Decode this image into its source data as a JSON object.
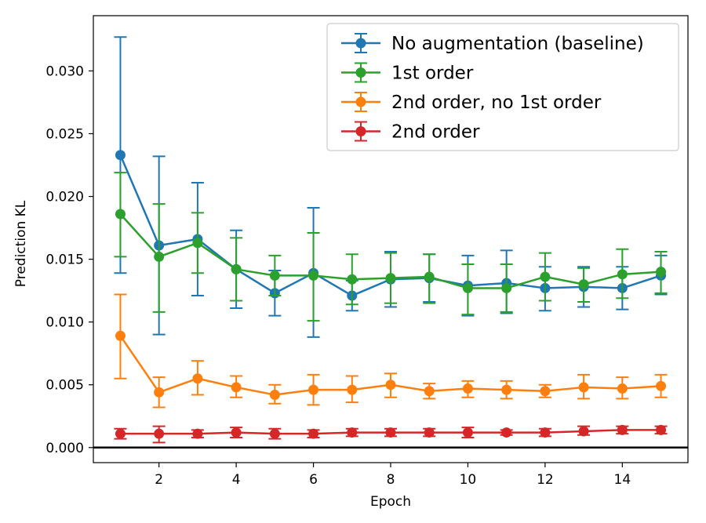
{
  "chart_data": {
    "type": "line",
    "xlabel": "Epoch",
    "ylabel": "Prediction KL",
    "xlim": [
      0.3,
      15.7
    ],
    "ylim": [
      -0.0012,
      0.0344
    ],
    "x_ticks": [
      2,
      4,
      6,
      8,
      10,
      12,
      14
    ],
    "x_tick_labels": [
      "2",
      "4",
      "6",
      "8",
      "10",
      "12",
      "14"
    ],
    "y_ticks": [
      0,
      0.005,
      0.01,
      0.015,
      0.02,
      0.025,
      0.03
    ],
    "y_tick_labels": [
      "0.000",
      "0.005",
      "0.010",
      "0.015",
      "0.020",
      "0.025",
      "0.030"
    ],
    "hline": 0,
    "grid": false,
    "legend_position": "top-right",
    "x": [
      1,
      2,
      3,
      4,
      5,
      6,
      7,
      8,
      9,
      10,
      11,
      12,
      13,
      14,
      15
    ],
    "series": [
      {
        "name": "No augmentation (baseline)",
        "color": "#1f77b4",
        "values": [
          0.0233,
          0.0161,
          0.0166,
          0.0142,
          0.0123,
          0.0139,
          0.0121,
          0.0134,
          0.0135,
          0.0129,
          0.0131,
          0.0127,
          0.0128,
          0.0127,
          0.0137
        ],
        "err_low": [
          0.0139,
          0.009,
          0.0121,
          0.0111,
          0.0105,
          0.0088,
          0.0109,
          0.0112,
          0.0116,
          0.0105,
          0.0107,
          0.0109,
          0.0112,
          0.011,
          0.0122
        ],
        "err_high": [
          0.0327,
          0.0232,
          0.0211,
          0.0173,
          0.0141,
          0.0191,
          0.0133,
          0.0156,
          0.0154,
          0.0153,
          0.0157,
          0.0144,
          0.0144,
          0.0144,
          0.0153
        ]
      },
      {
        "name": "1st order",
        "color": "#2ca02c",
        "values": [
          0.0186,
          0.0152,
          0.0163,
          0.0142,
          0.0137,
          0.0137,
          0.0134,
          0.0135,
          0.0136,
          0.0127,
          0.0127,
          0.0136,
          0.013,
          0.0138,
          0.014
        ],
        "err_low": [
          0.0152,
          0.0108,
          0.0139,
          0.0117,
          0.0121,
          0.0101,
          0.0114,
          0.0115,
          0.0115,
          0.0106,
          0.0108,
          0.0117,
          0.0116,
          0.0119,
          0.0123
        ],
        "err_high": [
          0.0219,
          0.0194,
          0.0187,
          0.0167,
          0.0153,
          0.0171,
          0.0154,
          0.0155,
          0.0154,
          0.0146,
          0.0146,
          0.0155,
          0.0143,
          0.0158,
          0.0156
        ]
      },
      {
        "name": "2nd order, no 1st order",
        "color": "#ff7f0e",
        "values": [
          0.0089,
          0.0044,
          0.0055,
          0.0048,
          0.0042,
          0.0046,
          0.0046,
          0.005,
          0.0045,
          0.0047,
          0.0046,
          0.0045,
          0.0048,
          0.0047,
          0.0049
        ],
        "err_low": [
          0.0055,
          0.0032,
          0.0042,
          0.004,
          0.0035,
          0.0034,
          0.0036,
          0.004,
          0.0039,
          0.004,
          0.0039,
          0.004,
          0.0039,
          0.0039,
          0.004
        ],
        "err_high": [
          0.0122,
          0.0056,
          0.0069,
          0.0057,
          0.005,
          0.0058,
          0.0057,
          0.0059,
          0.0051,
          0.0053,
          0.0053,
          0.005,
          0.0058,
          0.0056,
          0.0058
        ]
      },
      {
        "name": "2nd order",
        "color": "#d62728",
        "values": [
          0.0011,
          0.0011,
          0.0011,
          0.0012,
          0.0011,
          0.0011,
          0.0012,
          0.0012,
          0.0012,
          0.0012,
          0.0012,
          0.0012,
          0.0013,
          0.0014,
          0.0014
        ],
        "err_low": [
          0.0007,
          0.0004,
          0.0008,
          0.0008,
          0.0007,
          0.0008,
          0.0009,
          0.0009,
          0.0009,
          0.0008,
          0.001,
          0.0009,
          0.001,
          0.0011,
          0.0011
        ],
        "err_high": [
          0.0015,
          0.0017,
          0.0014,
          0.0016,
          0.0015,
          0.0014,
          0.0015,
          0.0015,
          0.0015,
          0.0016,
          0.0014,
          0.0015,
          0.0017,
          0.0017,
          0.0017
        ]
      }
    ]
  }
}
